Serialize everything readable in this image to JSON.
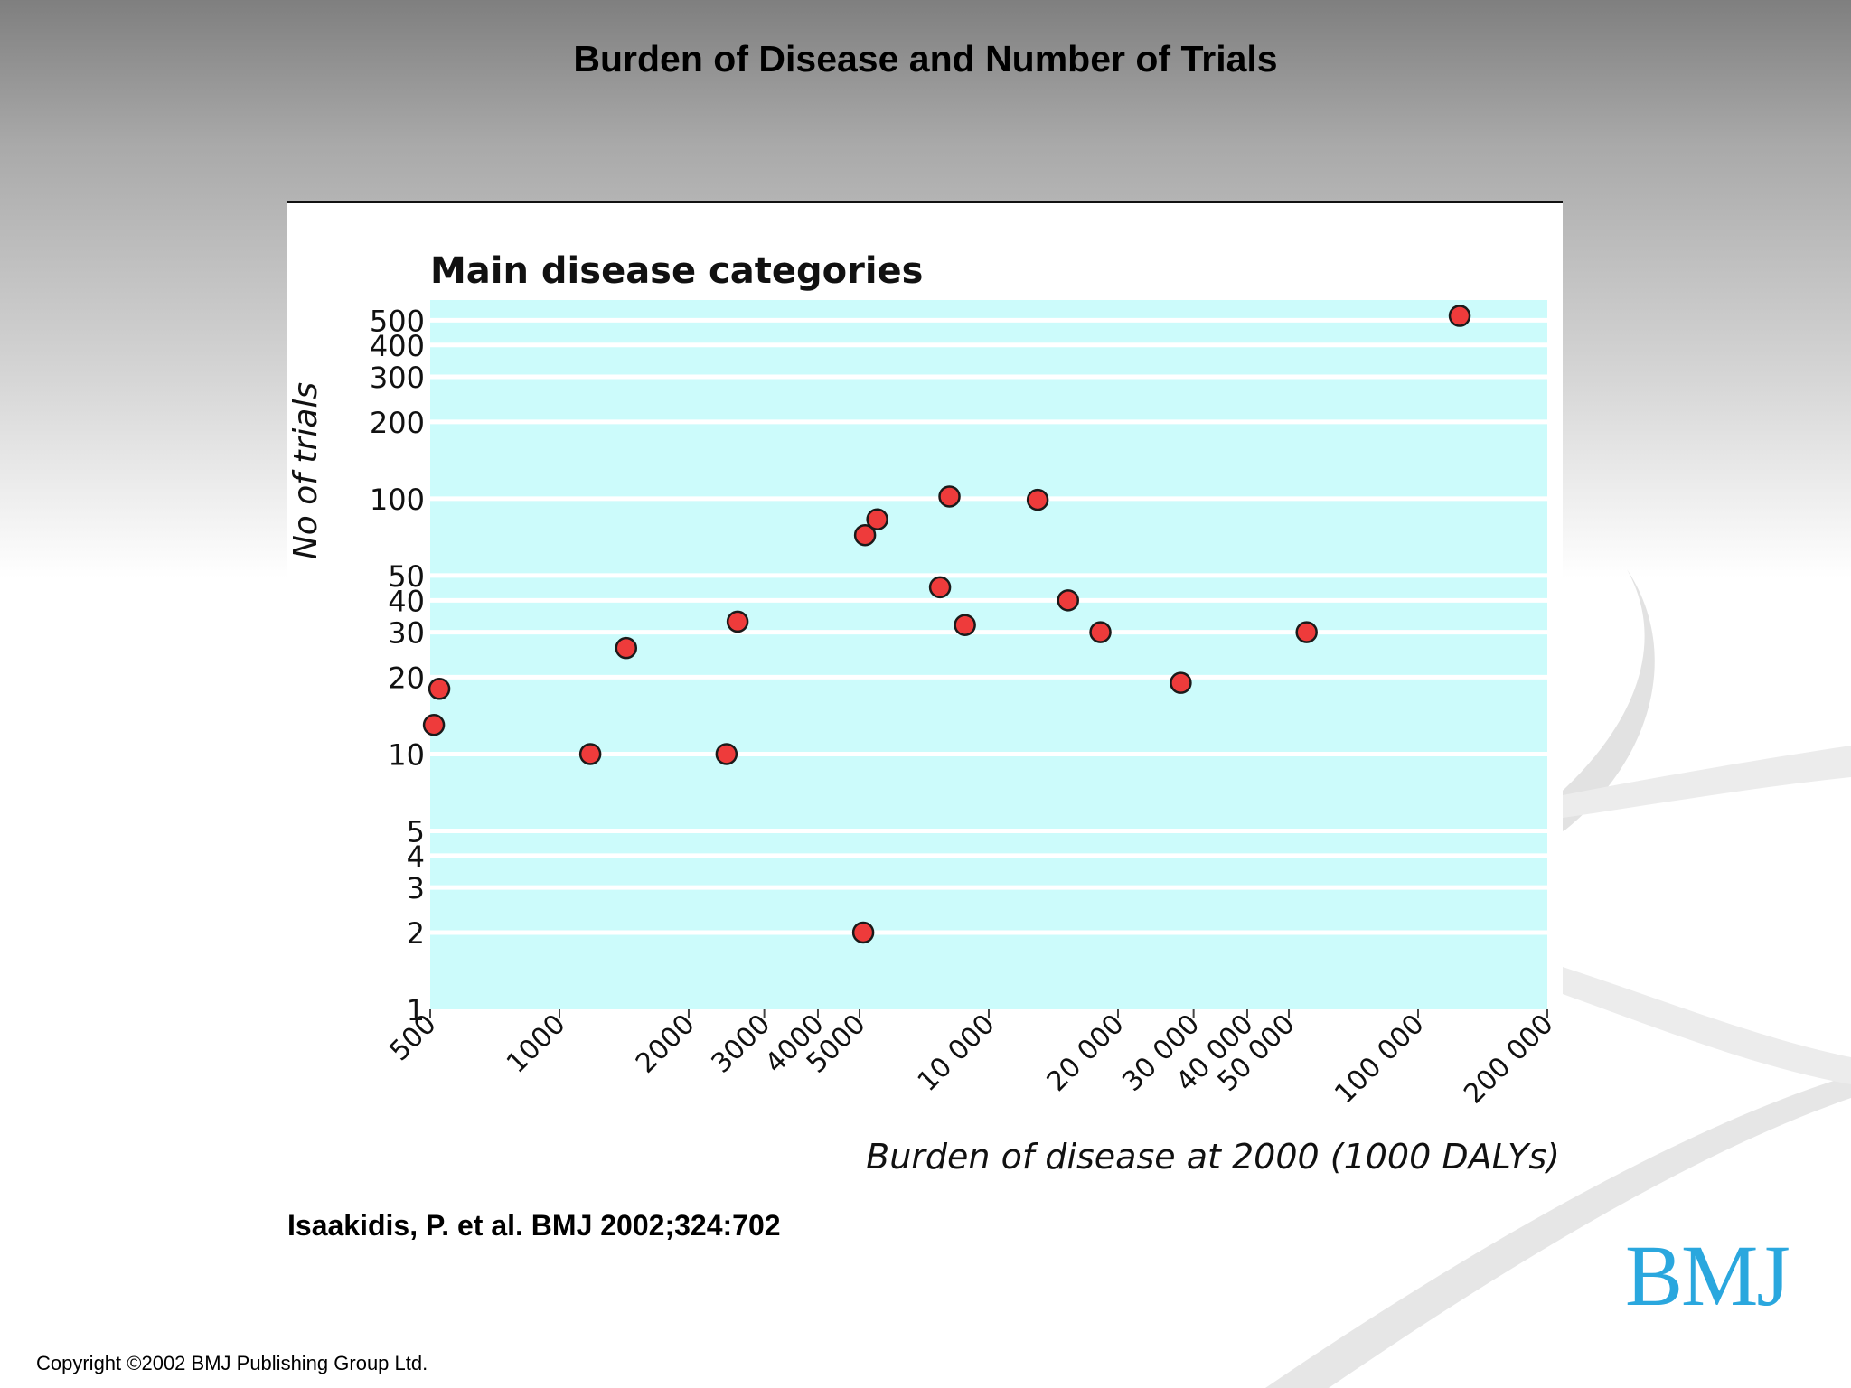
{
  "slide": {
    "title": "Burden of Disease and Number of Trials",
    "citation": "Isaakidis, P. et al. BMJ 2002;324:702",
    "copyright": "Copyright ©2002 BMJ Publishing Group Ltd.",
    "logo_text": "BMJ",
    "colors": {
      "plot_background": "#ccfbfb",
      "marker_fill": "#ee3b3b",
      "marker_stroke": "#1a1a1a",
      "logo": "#2aa7de"
    }
  },
  "chart_data": {
    "type": "scatter",
    "title": "Main disease categories",
    "xlabel": "Burden of disease at 2000 (1000 DALYs)",
    "ylabel": "No of trials",
    "x_scale": "log",
    "y_scale": "log",
    "xlim": [
      500,
      200000
    ],
    "ylim": [
      1,
      600
    ],
    "grid": "horizontal",
    "x_ticks": [
      {
        "value": 500,
        "label": "500"
      },
      {
        "value": 1000,
        "label": "1000"
      },
      {
        "value": 2000,
        "label": "2000"
      },
      {
        "value": 3000,
        "label": "3000"
      },
      {
        "value": 4000,
        "label": "4000"
      },
      {
        "value": 5000,
        "label": "5000"
      },
      {
        "value": 10000,
        "label": "10 000"
      },
      {
        "value": 20000,
        "label": "20 000"
      },
      {
        "value": 30000,
        "label": "30 000"
      },
      {
        "value": 40000,
        "label": "40 000"
      },
      {
        "value": 50000,
        "label": "50 000"
      },
      {
        "value": 100000,
        "label": "100 000"
      },
      {
        "value": 200000,
        "label": "200 000"
      }
    ],
    "y_ticks": [
      {
        "value": 1,
        "label": "1"
      },
      {
        "value": 2,
        "label": "2"
      },
      {
        "value": 3,
        "label": "3"
      },
      {
        "value": 4,
        "label": "4"
      },
      {
        "value": 5,
        "label": "5"
      },
      {
        "value": 10,
        "label": "10"
      },
      {
        "value": 20,
        "label": "20"
      },
      {
        "value": 30,
        "label": "30"
      },
      {
        "value": 40,
        "label": "40"
      },
      {
        "value": 50,
        "label": "50"
      },
      {
        "value": 100,
        "label": "100"
      },
      {
        "value": 200,
        "label": "200"
      },
      {
        "value": 300,
        "label": "300"
      },
      {
        "value": 400,
        "label": "400"
      },
      {
        "value": 500,
        "label": "500"
      }
    ],
    "points": [
      {
        "x": 510,
        "y": 13
      },
      {
        "x": 525,
        "y": 18
      },
      {
        "x": 1180,
        "y": 10
      },
      {
        "x": 1430,
        "y": 26
      },
      {
        "x": 2450,
        "y": 10
      },
      {
        "x": 2600,
        "y": 33
      },
      {
        "x": 5100,
        "y": 2
      },
      {
        "x": 5150,
        "y": 72
      },
      {
        "x": 5500,
        "y": 83
      },
      {
        "x": 7700,
        "y": 45
      },
      {
        "x": 8100,
        "y": 102
      },
      {
        "x": 8800,
        "y": 32
      },
      {
        "x": 13000,
        "y": 99
      },
      {
        "x": 15300,
        "y": 40
      },
      {
        "x": 18200,
        "y": 30
      },
      {
        "x": 28000,
        "y": 19
      },
      {
        "x": 55000,
        "y": 30
      },
      {
        "x": 125000,
        "y": 520
      }
    ]
  }
}
